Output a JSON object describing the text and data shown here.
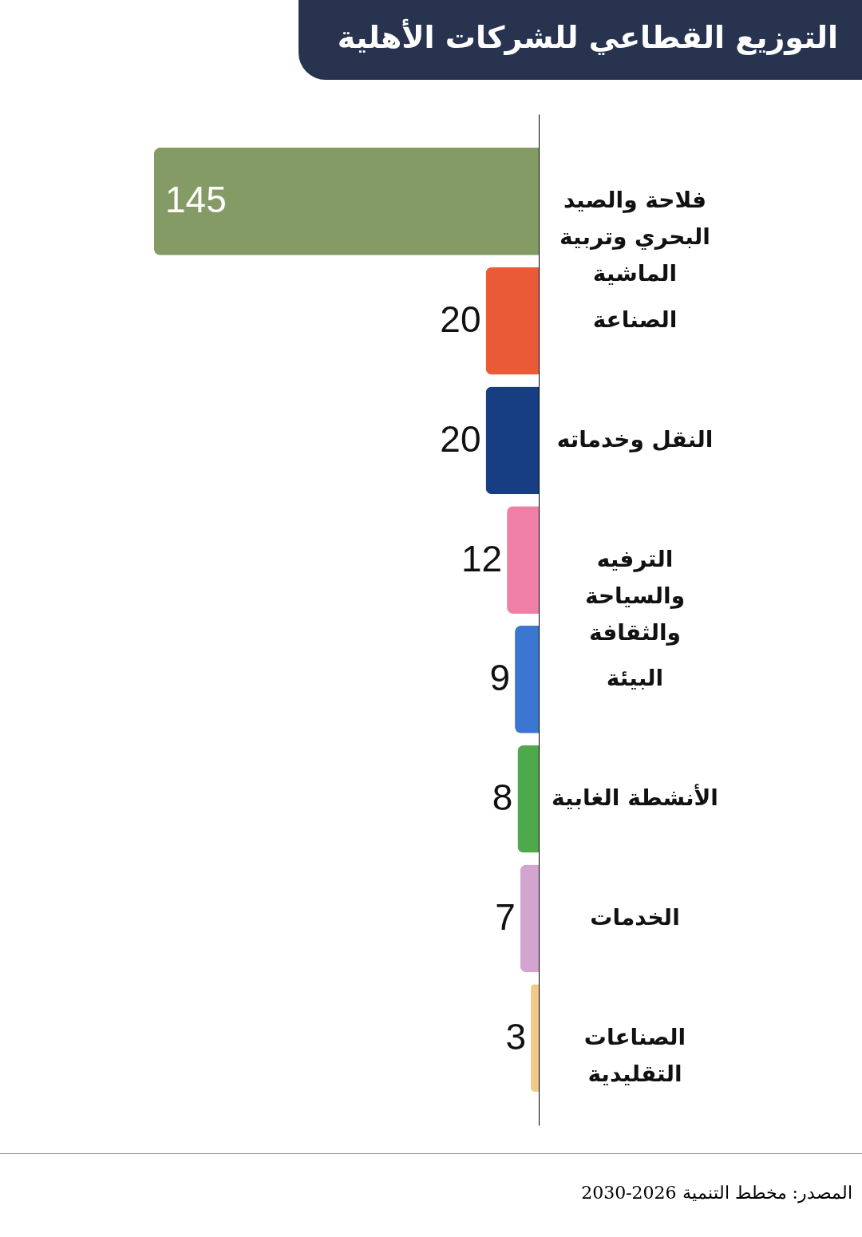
{
  "chart_data": {
    "type": "bar",
    "orientation": "horizontal",
    "title": "التوزيع القطاعي للشركات الأهلية",
    "categories": [
      "فلاحة والصيد البحري وتربية الماشية",
      "الصناعة",
      "النقل وخدماته",
      "الترفيه والسياحة والثقافة",
      "البيئة",
      "الأنشطة الغابية",
      "الخدمات",
      "الصناعات التقليدية"
    ],
    "values": [
      145,
      20,
      20,
      12,
      9,
      8,
      7,
      3
    ],
    "colors": [
      "#859b65",
      "#eb5a36",
      "#173d82",
      "#ef7fa6",
      "#3b76d0",
      "#4ea94a",
      "#d2a4cf",
      "#f3c98a"
    ],
    "data_labels": true,
    "annotations": [
      "المصدر: مخطط التنمية 2026-2030"
    ]
  }
}
